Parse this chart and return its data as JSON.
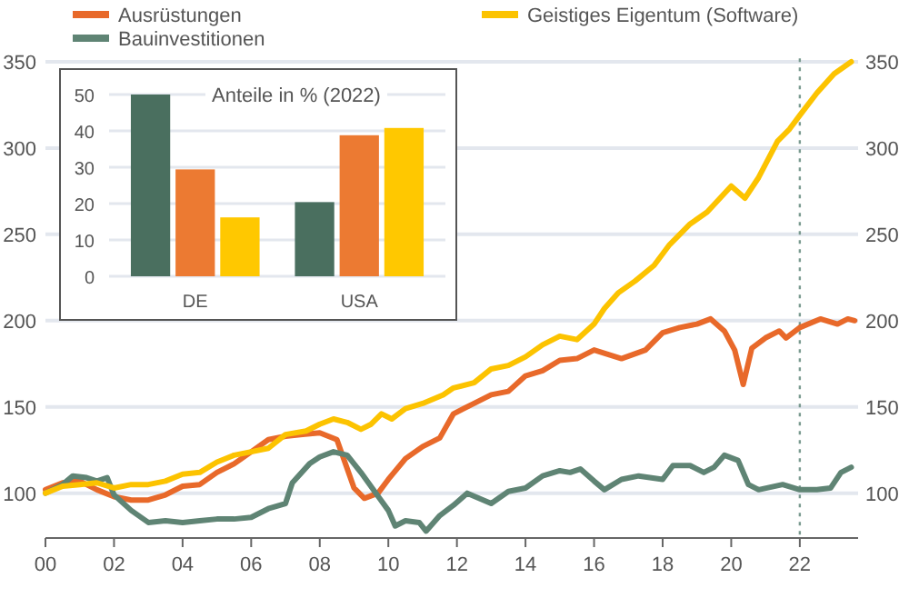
{
  "chart_data": [
    {
      "type": "line",
      "legend": "top",
      "grid": "y",
      "line_style": "solid",
      "marker": "none",
      "xlim": [
        2000,
        2023.7
      ],
      "xticks": [
        {
          "value": 2000,
          "label": "00"
        },
        {
          "value": 2002,
          "label": "02"
        },
        {
          "value": 2004,
          "label": "04"
        },
        {
          "value": 2006,
          "label": "06"
        },
        {
          "value": 2008,
          "label": "08"
        },
        {
          "value": 2010,
          "label": "10"
        },
        {
          "value": 2012,
          "label": "12"
        },
        {
          "value": 2014,
          "label": "14"
        },
        {
          "value": 2016,
          "label": "16"
        },
        {
          "value": 2018,
          "label": "18"
        },
        {
          "value": 2020,
          "label": "20"
        },
        {
          "value": 2022,
          "label": "22"
        }
      ],
      "ylim": [
        74,
        352
      ],
      "yticks": [
        100,
        150,
        200,
        250,
        300,
        350
      ],
      "y2lim": [
        74,
        352
      ],
      "y2ticks": [
        100,
        150,
        200,
        250,
        300,
        350
      ],
      "ref_lines": [
        {
          "axis": "x",
          "value": 2022,
          "color": "#7a9a90",
          "line_style": "dotted"
        }
      ],
      "series": [
        {
          "name": "Ausrüstungen",
          "color": "#e8692a",
          "x": [
            2000,
            2000.5,
            2001,
            2001.5,
            2002,
            2002.5,
            2003,
            2003.5,
            2004,
            2004.5,
            2005,
            2005.5,
            2006,
            2006.5,
            2007,
            2007.5,
            2008,
            2008.5,
            2009,
            2009.3,
            2009.7,
            2010,
            2010.5,
            2011,
            2011.5,
            2011.9,
            2012.5,
            2013,
            2013.5,
            2014,
            2014.5,
            2015,
            2015.5,
            2016,
            2016.8,
            2017.5,
            2018,
            2018.5,
            2019,
            2019.4,
            2019.8,
            2020.1,
            2020.35,
            2020.6,
            2021,
            2021.4,
            2021.6,
            2022,
            2022.6,
            2023.1,
            2023.4,
            2023.6
          ],
          "values": [
            102,
            106,
            107,
            102,
            98,
            96,
            96,
            99,
            104,
            105,
            112,
            117,
            124,
            131,
            133,
            134,
            135,
            131,
            103,
            97,
            100,
            108,
            120,
            127,
            132,
            146,
            152,
            157,
            159,
            168,
            171,
            177,
            178,
            183,
            178,
            183,
            193,
            196,
            198,
            201,
            194,
            183,
            163,
            184,
            190,
            194,
            190,
            196,
            201,
            198,
            201,
            200
          ]
        },
        {
          "name": "Bauinvestitionen",
          "color": "#5f8474",
          "x": [
            2000,
            2000.5,
            2000.8,
            2001.2,
            2001.5,
            2001.8,
            2002,
            2002.5,
            2003,
            2003.5,
            2004,
            2004.5,
            2005,
            2005.5,
            2006,
            2006.5,
            2007,
            2007.2,
            2007.7,
            2008,
            2008.4,
            2008.8,
            2009.2,
            2009.6,
            2010,
            2010.2,
            2010.5,
            2010.9,
            2011.1,
            2011.5,
            2011.9,
            2012.3,
            2013,
            2013.5,
            2014,
            2014.5,
            2015,
            2015.3,
            2015.6,
            2016,
            2016.3,
            2016.8,
            2017.3,
            2018,
            2018.3,
            2018.8,
            2019.2,
            2019.5,
            2019.8,
            2020.2,
            2020.5,
            2020.8,
            2021.5,
            2022,
            2022.5,
            2022.9,
            2023.2,
            2023.5
          ],
          "values": [
            100,
            105,
            110,
            109,
            107,
            109,
            99,
            90,
            83,
            84,
            83,
            84,
            85,
            85,
            86,
            91,
            94,
            106,
            117,
            121,
            124,
            122,
            112,
            101,
            90,
            81,
            84,
            83,
            78,
            87,
            93,
            100,
            94,
            101,
            103,
            110,
            113,
            112,
            114,
            107,
            102,
            108,
            110,
            108,
            116,
            116,
            112,
            115,
            122,
            119,
            105,
            102,
            105,
            102,
            102,
            103,
            112,
            115
          ]
        },
        {
          "name": "Geistiges Eigentum (Software)",
          "color": "#fcc300",
          "x": [
            2000,
            2000.5,
            2001,
            2001.5,
            2002,
            2002.5,
            2003,
            2003.5,
            2004,
            2004.5,
            2005,
            2005.5,
            2006,
            2006.5,
            2007,
            2007.6,
            2008,
            2008.4,
            2008.8,
            2009.2,
            2009.5,
            2009.8,
            2010.1,
            2010.5,
            2011,
            2011.6,
            2011.9,
            2012.5,
            2013,
            2013.5,
            2014,
            2014.5,
            2015,
            2015.5,
            2016,
            2016.3,
            2016.7,
            2017.2,
            2017.75,
            2018.2,
            2018.8,
            2019.3,
            2020,
            2020.4,
            2020.8,
            2021.35,
            2021.7,
            2022,
            2022.5,
            2023,
            2023.5
          ],
          "values": [
            100,
            104,
            105,
            106,
            103,
            105,
            105,
            107,
            111,
            112,
            118,
            122,
            124,
            126,
            134,
            136,
            140,
            143,
            141,
            137,
            140,
            146,
            143,
            149,
            152,
            157,
            161,
            164,
            172,
            174,
            179,
            186,
            191,
            189,
            198,
            207,
            216,
            223,
            232,
            244,
            256,
            263,
            278,
            271,
            283,
            304,
            311,
            319,
            332,
            343,
            350
          ]
        }
      ]
    },
    {
      "type": "bar",
      "title": "Anteile in % (2022)",
      "grid": "y",
      "categories": [
        "DE",
        "USA"
      ],
      "ylim": [
        0,
        55
      ],
      "yticks": [
        0,
        10,
        20,
        30,
        40,
        50
      ],
      "series": [
        {
          "color": "#4a6f5f",
          "values": [
            50,
            20.4
          ]
        },
        {
          "color": "#ec7a32",
          "values": [
            29.4,
            38.8
          ]
        },
        {
          "color": "#ffc800",
          "values": [
            16.2,
            40.8
          ]
        }
      ]
    }
  ]
}
